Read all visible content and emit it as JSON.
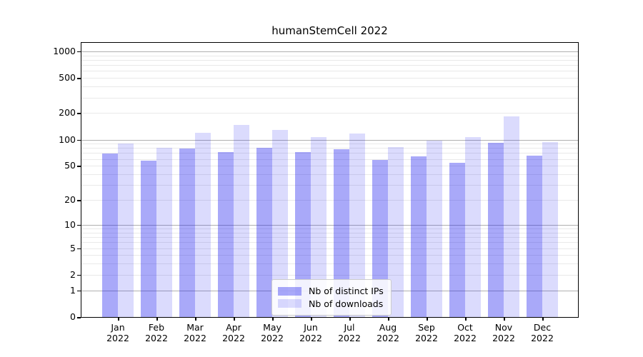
{
  "chart_data": {
    "type": "bar",
    "title": "humanStemCell 2022",
    "year": "2022",
    "months": [
      "Jan",
      "Feb",
      "Mar",
      "Apr",
      "May",
      "Jun",
      "Jul",
      "Aug",
      "Sep",
      "Oct",
      "Nov",
      "Dec"
    ],
    "categories": [
      "Jan 2022",
      "Feb 2022",
      "Mar 2022",
      "Apr 2022",
      "May 2022",
      "Jun 2022",
      "Jul 2022",
      "Aug 2022",
      "Sep 2022",
      "Oct 2022",
      "Nov 2022",
      "Dec 2022"
    ],
    "series": [
      {
        "name": "Nb of distinct IPs",
        "color": "rgba(30,30,240,0.38)",
        "values": [
          69,
          57,
          79,
          72,
          80,
          72,
          77,
          59,
          64,
          54,
          92,
          66
        ]
      },
      {
        "name": "Nb of downloads",
        "color": "rgba(30,30,240,0.16)",
        "values": [
          90,
          81,
          119,
          146,
          129,
          107,
          117,
          82,
          97,
          106,
          185,
          94
        ]
      }
    ],
    "xlabel": "",
    "ylabel": "",
    "y_scale": "log1p",
    "ylim": [
      0,
      1300
    ],
    "y_ticks": [
      0,
      1,
      2,
      5,
      10,
      20,
      50,
      100,
      200,
      500,
      1000
    ],
    "grid": {
      "major_ticks": [
        1,
        10,
        100,
        1000
      ],
      "minor_base": [
        1,
        10,
        100
      ],
      "major_color": "#b0b0b0",
      "minor_color": "#e9e9e9",
      "grid_on": true
    },
    "legend_position": "lower center"
  }
}
